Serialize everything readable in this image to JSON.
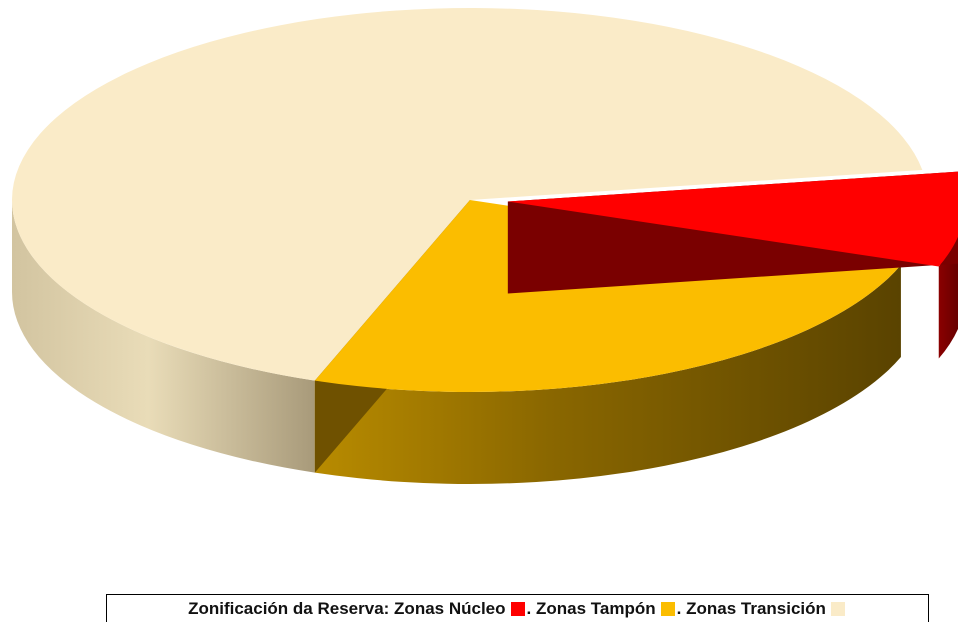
{
  "chart_data": {
    "type": "pie",
    "style": "3d-exploded",
    "slices": [
      {
        "name": "Zonas Núcleo",
        "value": 8,
        "color": "#ff0000",
        "side_color": "#7a0000",
        "exploded": true
      },
      {
        "name": "Zonas Tampón",
        "value": 25,
        "color": "#fbbd00",
        "side_color": "#6f5100",
        "exploded": false
      },
      {
        "name": "Zonas Transición",
        "value": 67,
        "color": "#faebc8",
        "side_color": "#d6c49a",
        "exploded": false
      }
    ]
  },
  "legend": {
    "prefix": "Zonificación da Reserva:",
    "items": [
      {
        "label": "Zonas Núcleo",
        "color": "#ff0000"
      },
      {
        "label": "Zonas Tampón",
        "color": "#fbbd00"
      },
      {
        "label": "Zonas Transición",
        "color": "#faebc8"
      }
    ],
    "separator": ".",
    "placement": "bottom"
  }
}
